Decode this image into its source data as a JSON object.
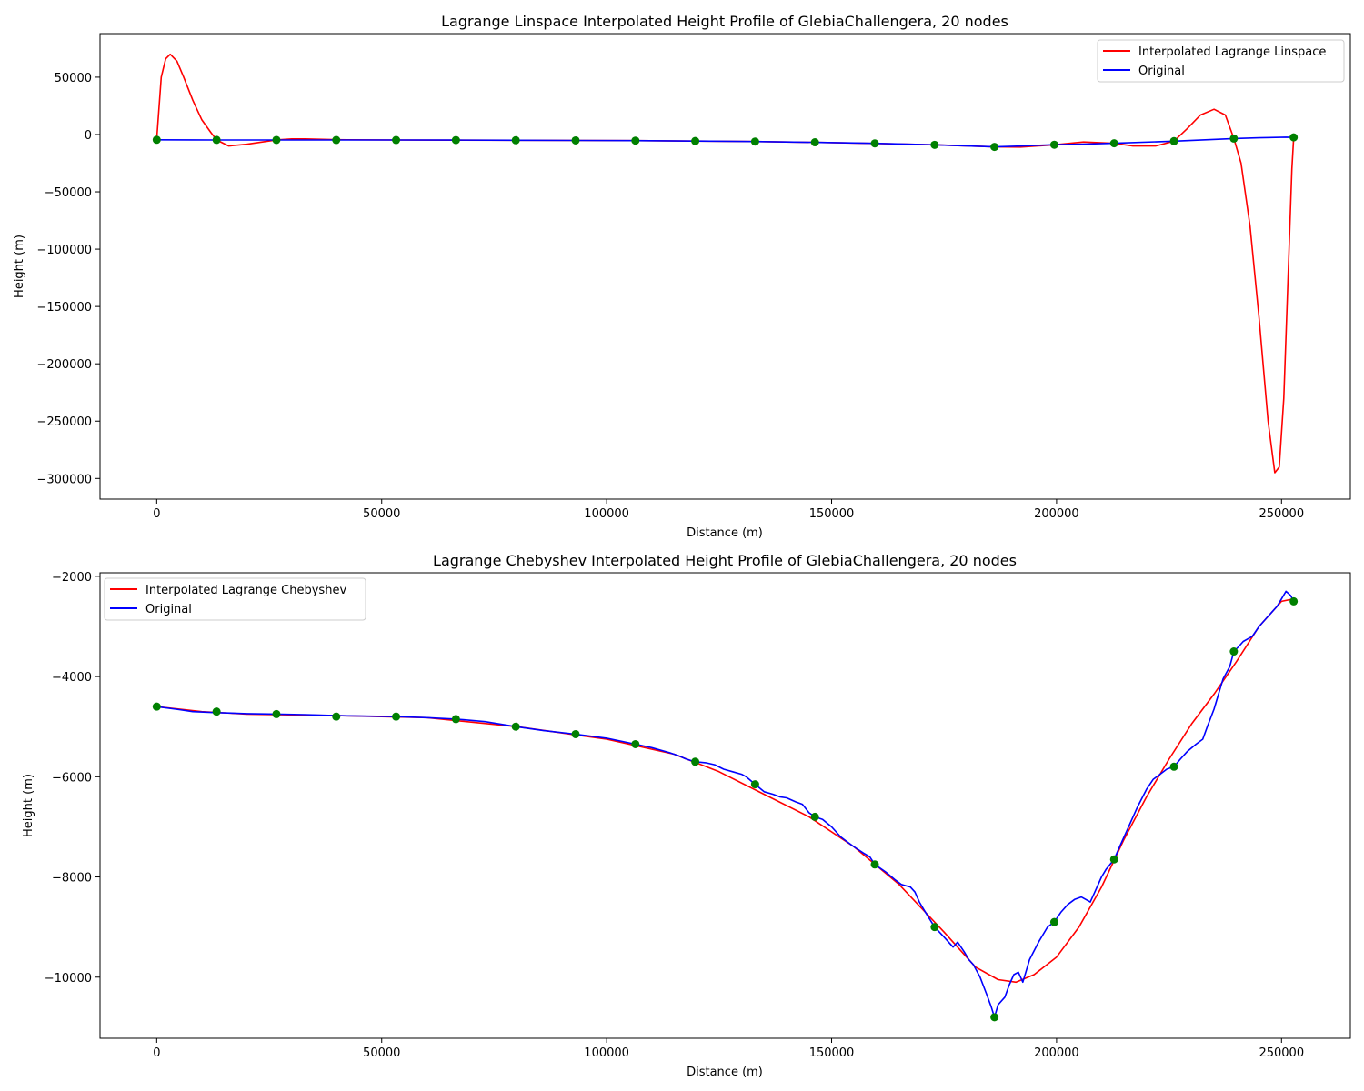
{
  "chart_data": [
    {
      "type": "line",
      "title": "Lagrange Linspace Interpolated Height Profile of GlebiaChallengera, 20 nodes",
      "xlabel": "Distance (m)",
      "ylabel": "Height (m)",
      "xlim": [
        -12600,
        265300
      ],
      "ylim": [
        -318000,
        88000
      ],
      "xticks": [
        0,
        50000,
        100000,
        150000,
        200000,
        250000
      ],
      "xtick_labels": [
        "0",
        "50000",
        "100000",
        "150000",
        "200000",
        "250000"
      ],
      "yticks": [
        -300000,
        -250000,
        -200000,
        -150000,
        -100000,
        -50000,
        0,
        50000
      ],
      "ytick_labels": [
        "−300000",
        "−250000",
        "−200000",
        "−150000",
        "−100000",
        "−50000",
        "0",
        "50000"
      ],
      "grid": false,
      "legend_position": "upper right",
      "series": [
        {
          "name": "Interpolated Lagrange Linspace",
          "color": "#ff0000",
          "x": [
            0,
            1000,
            2000,
            3000,
            4500,
            6000,
            8000,
            10000,
            12000,
            13300,
            16000,
            20000,
            26600,
            30000,
            33000,
            40000,
            53200,
            66500,
            79800,
            93100,
            106400,
            119700,
            133000,
            146300,
            159600,
            172900,
            186200,
            192000,
            199500,
            206000,
            212800,
            217000,
            222000,
            226100,
            229000,
            232000,
            235000,
            237500,
            239400,
            241000,
            243000,
            245000,
            247000,
            248500,
            249500,
            250500,
            251500,
            252300,
            252700
          ],
          "y": [
            -4600,
            50000,
            66000,
            70000,
            64000,
            50000,
            30000,
            13000,
            2000,
            -4700,
            -10000,
            -8500,
            -4700,
            -3800,
            -3800,
            -4500,
            -4800,
            -4900,
            -5000,
            -5200,
            -5300,
            -5700,
            -6100,
            -6800,
            -7800,
            -9000,
            -10800,
            -11000,
            -9000,
            -6500,
            -7700,
            -10000,
            -10000,
            -5800,
            5000,
            17000,
            22000,
            17000,
            -3500,
            -25000,
            -80000,
            -160000,
            -250000,
            -295000,
            -290000,
            -230000,
            -120000,
            -30000,
            -2500
          ]
        },
        {
          "name": "Original",
          "color": "#0000ff",
          "x": [
            0,
            8000,
            13300,
            26600,
            39900,
            53200,
            66500,
            79800,
            93100,
            106400,
            119700,
            133000,
            146300,
            159600,
            172900,
            186200,
            192000,
            199500,
            206000,
            212800,
            226100,
            239400,
            245000,
            251000,
            252700
          ],
          "y": [
            -4600,
            -4700,
            -4750,
            -4750,
            -4800,
            -4800,
            -4850,
            -5000,
            -5150,
            -5350,
            -5700,
            -6150,
            -6800,
            -7750,
            -9000,
            -10800,
            -10100,
            -8900,
            -8400,
            -7650,
            -5800,
            -3500,
            -2850,
            -2300,
            -2500
          ]
        }
      ],
      "nodes": {
        "color": "#008000",
        "x": [
          0,
          13300,
          26600,
          39900,
          53200,
          66500,
          79800,
          93100,
          106400,
          119700,
          133000,
          146300,
          159600,
          172900,
          186200,
          199500,
          212800,
          226100,
          239400,
          252700
        ],
        "y": [
          -4600,
          -4700,
          -4750,
          -4800,
          -4800,
          -4850,
          -5000,
          -5150,
          -5350,
          -5700,
          -6150,
          -6800,
          -7750,
          -9000,
          -10800,
          -8900,
          -7650,
          -5800,
          -3500,
          -2500
        ]
      }
    },
    {
      "type": "line",
      "title": "Lagrange Chebyshev Interpolated Height Profile of GlebiaChallengera, 20 nodes",
      "xlabel": "Distance (m)",
      "ylabel": "Height (m)",
      "xlim": [
        -12600,
        265300
      ],
      "ylim": [
        -11220,
        -1930
      ],
      "xticks": [
        0,
        50000,
        100000,
        150000,
        200000,
        250000
      ],
      "xtick_labels": [
        "0",
        "50000",
        "100000",
        "150000",
        "200000",
        "250000"
      ],
      "yticks": [
        -10000,
        -8000,
        -6000,
        -4000,
        -2000
      ],
      "ytick_labels": [
        "−10000",
        "−8000",
        "−6000",
        "−4000",
        "−2000"
      ],
      "grid": false,
      "legend_position": "upper left",
      "series": [
        {
          "name": "Interpolated Lagrange Chebyshev",
          "color": "#ff0000",
          "x": [
            0,
            10000,
            20000,
            40000,
            60000,
            80000,
            100000,
            115000,
            125000,
            135000,
            145000,
            155000,
            165000,
            175000,
            182000,
            187000,
            191000,
            195000,
            200000,
            205000,
            210000,
            215000,
            220000,
            225000,
            230000,
            235000,
            240000,
            245000,
            250000,
            252700
          ],
          "y": [
            -4600,
            -4700,
            -4750,
            -4780,
            -4820,
            -5000,
            -5250,
            -5550,
            -5900,
            -6350,
            -6800,
            -7400,
            -8150,
            -9100,
            -9800,
            -10050,
            -10100,
            -9950,
            -9600,
            -9000,
            -8200,
            -7250,
            -6400,
            -5650,
            -4950,
            -4350,
            -3700,
            -3000,
            -2500,
            -2450
          ]
        },
        {
          "name": "Original",
          "color": "#0000ff",
          "x": [
            0,
            5000,
            8000,
            13300,
            20000,
            26600,
            33000,
            39900,
            46000,
            53200,
            60000,
            66500,
            73000,
            79800,
            86000,
            93100,
            100000,
            106400,
            110000,
            114000,
            116000,
            117500,
            118500,
            119700,
            122000,
            124000,
            126000,
            128000,
            130000,
            131000,
            133000,
            135000,
            137000,
            138500,
            140000,
            142000,
            143500,
            145000,
            146300,
            148000,
            150000,
            152000,
            153500,
            155000,
            157000,
            158500,
            159600,
            162000,
            164000,
            165500,
            167500,
            168500,
            169500,
            170500,
            171500,
            172900,
            175000,
            177000,
            178000,
            179500,
            180500,
            181500,
            183000,
            184500,
            185500,
            186200,
            187000,
            188500,
            189500,
            190500,
            191500,
            192500,
            194000,
            196000,
            198000,
            199500,
            201000,
            202500,
            204000,
            205500,
            206500,
            207500,
            208500,
            210000,
            211000,
            212800,
            214000,
            216000,
            218000,
            220000,
            221500,
            223000,
            224500,
            226100,
            227500,
            229000,
            231000,
            232500,
            233500,
            235000,
            236000,
            237000,
            238500,
            239400,
            240500,
            241500,
            242500,
            243500,
            245000,
            247000,
            249000,
            250000,
            251000,
            252000,
            252700
          ],
          "y": [
            -4600,
            -4660,
            -4700,
            -4720,
            -4740,
            -4750,
            -4760,
            -4780,
            -4790,
            -4800,
            -4820,
            -4850,
            -4900,
            -5000,
            -5080,
            -5150,
            -5230,
            -5350,
            -5420,
            -5520,
            -5580,
            -5640,
            -5670,
            -5700,
            -5720,
            -5760,
            -5850,
            -5900,
            -5950,
            -6000,
            -6150,
            -6300,
            -6350,
            -6400,
            -6420,
            -6500,
            -6550,
            -6720,
            -6800,
            -6850,
            -7000,
            -7200,
            -7300,
            -7400,
            -7520,
            -7600,
            -7750,
            -7900,
            -8050,
            -8150,
            -8200,
            -8300,
            -8500,
            -8650,
            -8800,
            -9000,
            -9200,
            -9400,
            -9300,
            -9500,
            -9650,
            -9750,
            -10000,
            -10350,
            -10600,
            -10800,
            -10550,
            -10400,
            -10150,
            -9950,
            -9900,
            -10100,
            -9650,
            -9300,
            -9000,
            -8900,
            -8700,
            -8550,
            -8450,
            -8400,
            -8450,
            -8500,
            -8300,
            -8000,
            -7850,
            -7650,
            -7400,
            -7000,
            -6600,
            -6250,
            -6050,
            -5950,
            -5850,
            -5800,
            -5650,
            -5500,
            -5350,
            -5250,
            -5000,
            -4650,
            -4350,
            -4050,
            -3800,
            -3500,
            -3400,
            -3300,
            -3250,
            -3200,
            -3000,
            -2800,
            -2600,
            -2450,
            -2300,
            -2380,
            -2500
          ]
        }
      ],
      "nodes": {
        "color": "#008000",
        "x": [
          0,
          13300,
          26600,
          39900,
          53200,
          66500,
          79800,
          93100,
          106400,
          119700,
          133000,
          146300,
          159600,
          172900,
          186200,
          199500,
          212800,
          226100,
          239400,
          252700
        ],
        "y": [
          -4600,
          -4700,
          -4750,
          -4800,
          -4800,
          -4850,
          -5000,
          -5150,
          -5350,
          -5700,
          -6150,
          -6800,
          -7750,
          -9000,
          -10800,
          -8900,
          -7650,
          -5800,
          -3500,
          -2500
        ]
      }
    }
  ]
}
